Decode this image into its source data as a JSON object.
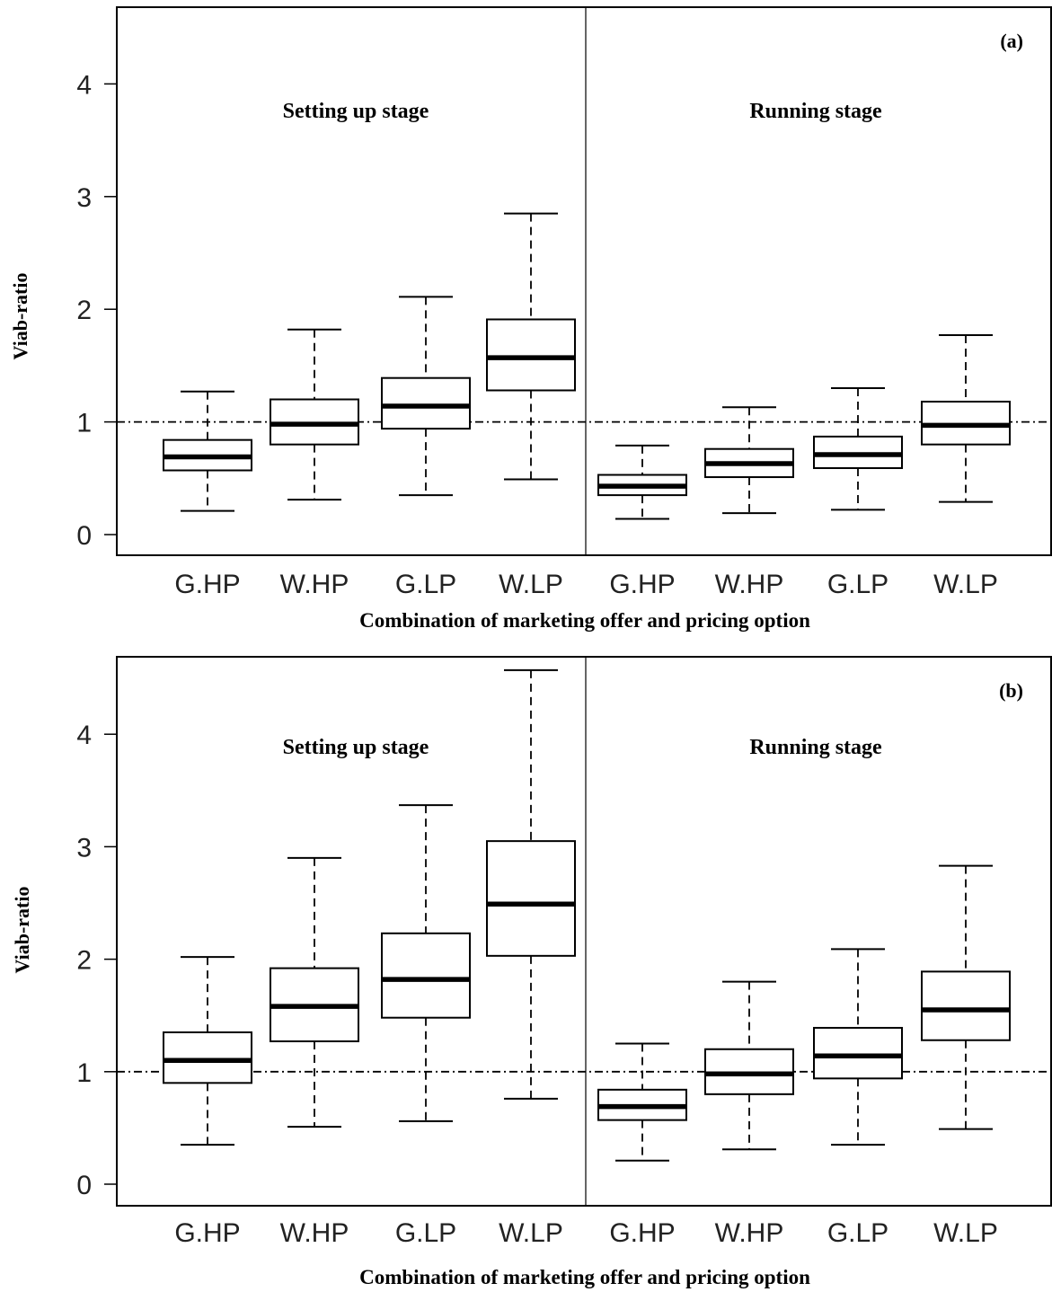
{
  "chart_data": [
    {
      "type": "boxplot",
      "panel_label": "(a)",
      "ylabel": "Viab-ratio",
      "xlabel": "Combination of marketing offer and pricing option",
      "ylim": [
        -0.18,
        4.6
      ],
      "y_ticks": [
        "0",
        "1",
        "2",
        "3",
        "4"
      ],
      "reference_line": 1,
      "groups": [
        "Setting up stage",
        "Running stage"
      ],
      "categories": [
        "G.HP",
        "W.HP",
        "G.LP",
        "W.LP",
        "G.HP",
        "W.HP",
        "G.LP",
        "W.LP"
      ],
      "boxes": [
        {
          "group": "Setting up stage",
          "label": "G.HP",
          "min": 0.21,
          "q1": 0.57,
          "median": 0.69,
          "q3": 0.84,
          "max": 1.27
        },
        {
          "group": "Setting up stage",
          "label": "W.HP",
          "min": 0.31,
          "q1": 0.8,
          "median": 0.98,
          "q3": 1.2,
          "max": 1.82
        },
        {
          "group": "Setting up stage",
          "label": "G.LP",
          "min": 0.35,
          "q1": 0.94,
          "median": 1.14,
          "q3": 1.39,
          "max": 2.11
        },
        {
          "group": "Setting up stage",
          "label": "W.LP",
          "min": 0.49,
          "q1": 1.28,
          "median": 1.57,
          "q3": 1.91,
          "max": 2.85
        },
        {
          "group": "Running stage",
          "label": "G.HP",
          "min": 0.14,
          "q1": 0.35,
          "median": 0.43,
          "q3": 0.53,
          "max": 0.79
        },
        {
          "group": "Running stage",
          "label": "W.HP",
          "min": 0.19,
          "q1": 0.51,
          "median": 0.63,
          "q3": 0.76,
          "max": 1.13
        },
        {
          "group": "Running stage",
          "label": "G.LP",
          "min": 0.22,
          "q1": 0.59,
          "median": 0.71,
          "q3": 0.87,
          "max": 1.3
        },
        {
          "group": "Running stage",
          "label": "W.LP",
          "min": 0.29,
          "q1": 0.8,
          "median": 0.97,
          "q3": 1.18,
          "max": 1.77
        }
      ]
    },
    {
      "type": "boxplot",
      "panel_label": "(b)",
      "ylabel": "Viab-ratio",
      "xlabel": "Combination of marketing offer and pricing option",
      "ylim": [
        -0.18,
        4.6
      ],
      "y_ticks": [
        "0",
        "1",
        "2",
        "3",
        "4"
      ],
      "reference_line": 1,
      "groups": [
        "Setting up stage",
        "Running stage"
      ],
      "categories": [
        "G.HP",
        "W.HP",
        "G.LP",
        "W.LP",
        "G.HP",
        "W.HP",
        "G.LP",
        "W.LP"
      ],
      "boxes": [
        {
          "group": "Setting up stage",
          "label": "G.HP",
          "min": 0.35,
          "q1": 0.9,
          "median": 1.1,
          "q3": 1.35,
          "max": 2.02
        },
        {
          "group": "Setting up stage",
          "label": "W.HP",
          "min": 0.51,
          "q1": 1.27,
          "median": 1.58,
          "q3": 1.92,
          "max": 2.9
        },
        {
          "group": "Setting up stage",
          "label": "G.LP",
          "min": 0.56,
          "q1": 1.48,
          "median": 1.82,
          "q3": 2.23,
          "max": 3.37
        },
        {
          "group": "Setting up stage",
          "label": "W.LP",
          "min": 0.76,
          "q1": 2.03,
          "median": 2.49,
          "q3": 3.05,
          "max": 4.57
        },
        {
          "group": "Running stage",
          "label": "G.HP",
          "min": 0.21,
          "q1": 0.57,
          "median": 0.69,
          "q3": 0.84,
          "max": 1.25
        },
        {
          "group": "Running stage",
          "label": "W.HP",
          "min": 0.31,
          "q1": 0.8,
          "median": 0.98,
          "q3": 1.2,
          "max": 1.8
        },
        {
          "group": "Running stage",
          "label": "G.LP",
          "min": 0.35,
          "q1": 0.94,
          "median": 1.14,
          "q3": 1.39,
          "max": 2.09
        },
        {
          "group": "Running stage",
          "label": "W.LP",
          "min": 0.49,
          "q1": 1.28,
          "median": 1.55,
          "q3": 1.89,
          "max": 2.83
        }
      ]
    }
  ]
}
